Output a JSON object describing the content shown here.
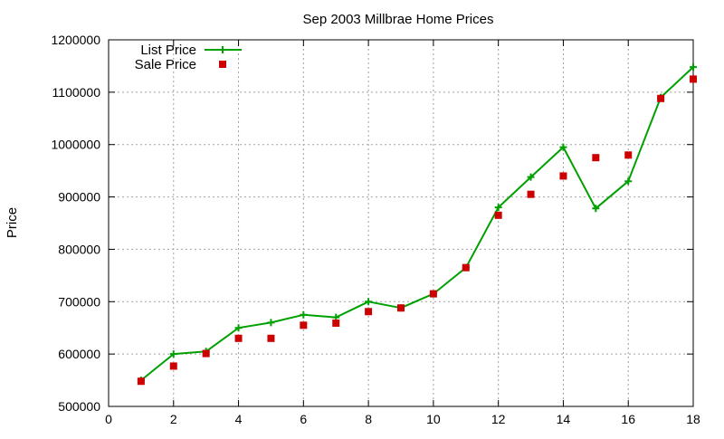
{
  "chart_data": {
    "type": "line",
    "title": "Sep 2003 Millbrae Home Prices",
    "xlabel": "",
    "ylabel": "Price",
    "xlim": [
      0,
      18
    ],
    "ylim": [
      500000,
      1200000
    ],
    "x_ticks": [
      0,
      2,
      4,
      6,
      8,
      10,
      12,
      14,
      16,
      18
    ],
    "y_ticks": [
      500000,
      600000,
      700000,
      800000,
      900000,
      1000000,
      1100000,
      1200000
    ],
    "grid": true,
    "legend_position": "top-left",
    "series": [
      {
        "name": "List Price",
        "style": "line-with-plus-markers",
        "color": "#00a000",
        "x": [
          1,
          2,
          3,
          4,
          5,
          6,
          7,
          8,
          9,
          10,
          11,
          12,
          13,
          14,
          15,
          16,
          17,
          18
        ],
        "values": [
          550000,
          600000,
          605000,
          650000,
          660000,
          675000,
          670000,
          700000,
          688000,
          715000,
          765000,
          880000,
          938000,
          995000,
          878000,
          930000,
          1090000,
          1148000
        ]
      },
      {
        "name": "Sale Price",
        "style": "square-markers",
        "color": "#cc0000",
        "x": [
          1,
          2,
          3,
          4,
          5,
          6,
          7,
          8,
          9,
          10,
          11,
          12,
          13,
          14,
          15,
          16,
          17,
          18
        ],
        "values": [
          548000,
          577000,
          601000,
          630000,
          630000,
          655000,
          659000,
          681000,
          688000,
          715000,
          765000,
          865000,
          905000,
          940000,
          975000,
          980000,
          1088000,
          1125000
        ]
      }
    ]
  }
}
